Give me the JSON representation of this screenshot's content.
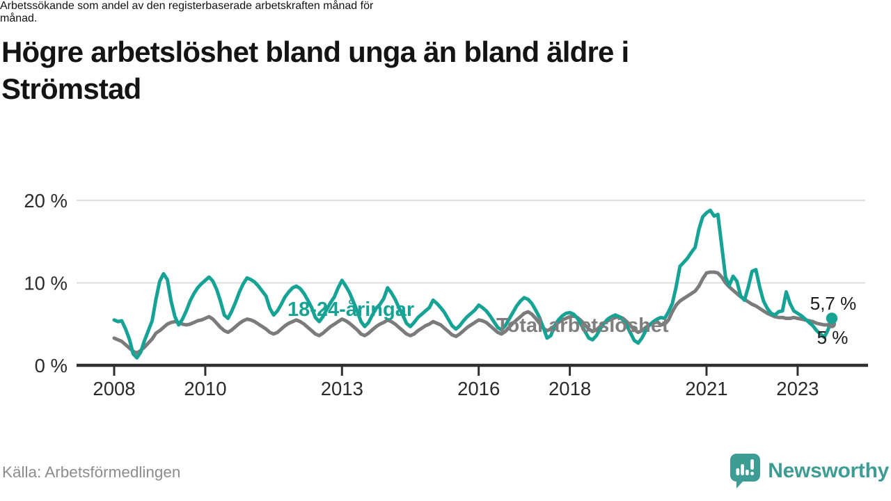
{
  "header": {
    "title_lines": [
      "Högre arbetslöshet bland unga än bland äldre i",
      "Strömstad"
    ],
    "subtitle_lines": [
      "Arbetssökande som andel av den registerbaserade arbetskraften månad för",
      "månad."
    ]
  },
  "footer": {
    "source": "Källa: Arbetsförmedlingen",
    "brand": "Newsworthy",
    "brand_icon": "bar-chart-speech-bubble-icon",
    "brand_color": "#3d9d95"
  },
  "colors": {
    "youth_line": "#16a396",
    "total_line": "#7b7b7b",
    "gridline": "#dcdcdc",
    "axis": "#2f2f2f",
    "annotation_text": "#1a1a1a",
    "tick_label": "#2b2b2b"
  },
  "chart_data": {
    "type": "line",
    "unit": "%",
    "frequency": "monthly",
    "start": "2008-01",
    "end": "2023-10",
    "ylim": [
      0,
      20
    ],
    "grid": "horizontal",
    "legend": "inline-labels",
    "yticks": [
      {
        "value": 0,
        "label": "0 %"
      },
      {
        "value": 10,
        "label": "10 %"
      },
      {
        "value": 20,
        "label": "20 %"
      }
    ],
    "xticks": [
      {
        "label": "2008",
        "month_index": 0
      },
      {
        "label": "2010",
        "month_index": 24
      },
      {
        "label": "2013",
        "month_index": 60
      },
      {
        "label": "2016",
        "month_index": 96
      },
      {
        "label": "2018",
        "month_index": 120
      },
      {
        "label": "2021",
        "month_index": 156
      },
      {
        "label": "2023",
        "month_index": 180
      }
    ],
    "series": [
      {
        "name": "18-24-åringar",
        "color": "#16a396",
        "end_label": "5,7 %",
        "end_value": 5.7,
        "values": [
          5.5,
          5.3,
          5.4,
          4.4,
          3.2,
          1.4,
          0.9,
          1.6,
          3.0,
          4.2,
          5.4,
          8.0,
          10.2,
          11.1,
          10.4,
          7.8,
          5.9,
          4.9,
          5.6,
          6.6,
          7.8,
          8.7,
          9.4,
          9.9,
          10.3,
          10.7,
          10.2,
          9.2,
          7.8,
          6.1,
          5.7,
          6.6,
          7.7,
          8.9,
          9.9,
          10.6,
          10.4,
          10.1,
          9.6,
          9.0,
          8.4,
          6.9,
          6.1,
          6.6,
          7.4,
          8.3,
          8.9,
          9.4,
          9.6,
          9.3,
          8.7,
          7.9,
          7.0,
          5.8,
          5.3,
          5.9,
          6.8,
          7.6,
          8.3,
          9.4,
          10.3,
          9.6,
          8.8,
          7.7,
          6.6,
          5.3,
          4.7,
          5.2,
          6.1,
          6.9,
          7.4,
          8.1,
          9.4,
          8.8,
          8.0,
          7.0,
          6.1,
          5.1,
          4.7,
          5.2,
          5.8,
          6.2,
          6.6,
          7.0,
          7.9,
          7.5,
          7.0,
          6.4,
          5.6,
          4.8,
          4.4,
          4.8,
          5.4,
          5.9,
          6.3,
          6.7,
          7.3,
          7.0,
          6.6,
          6.0,
          5.3,
          4.6,
          4.3,
          4.8,
          5.6,
          6.4,
          7.2,
          7.8,
          8.2,
          8.0,
          7.5,
          6.7,
          5.8,
          4.6,
          3.3,
          3.6,
          4.8,
          5.5,
          6.0,
          6.3,
          6.4,
          6.2,
          5.7,
          4.9,
          4.1,
          3.3,
          3.1,
          3.6,
          4.4,
          5.1,
          5.6,
          5.9,
          6.1,
          5.9,
          5.5,
          4.8,
          3.9,
          3.0,
          2.7,
          3.3,
          4.2,
          4.9,
          5.3,
          5.6,
          5.8,
          5.7,
          6.5,
          7.5,
          9.5,
          12.0,
          12.5,
          13.0,
          13.7,
          14.3,
          16.5,
          18.0,
          18.5,
          18.8,
          18.1,
          18.3,
          14.5,
          10.7,
          9.7,
          10.8,
          10.2,
          8.4,
          7.9,
          9.5,
          11.4,
          11.6,
          9.5,
          7.8,
          6.9,
          6.3,
          6.1,
          6.5,
          6.6,
          8.9,
          7.5,
          6.6,
          6.3,
          6.0,
          5.6,
          5.2,
          4.8,
          4.2,
          3.8,
          3.4,
          4.3,
          5.7
        ]
      },
      {
        "name": "Total arbetslöshet",
        "color": "#7b7b7b",
        "end_label": "5 %",
        "end_value": 5.0,
        "values": [
          3.3,
          3.1,
          2.9,
          2.5,
          2.1,
          1.7,
          1.5,
          1.8,
          2.2,
          2.7,
          3.2,
          3.9,
          4.2,
          4.6,
          5.0,
          5.2,
          5.3,
          5.2,
          5.0,
          4.9,
          5.0,
          5.2,
          5.4,
          5.5,
          5.7,
          5.9,
          5.6,
          5.1,
          4.6,
          4.2,
          4.0,
          4.3,
          4.7,
          5.1,
          5.4,
          5.6,
          5.5,
          5.3,
          5.0,
          4.7,
          4.4,
          4.0,
          3.8,
          4.0,
          4.4,
          4.8,
          5.1,
          5.3,
          5.5,
          5.3,
          5.0,
          4.6,
          4.2,
          3.8,
          3.6,
          3.9,
          4.3,
          4.7,
          5.0,
          5.3,
          5.6,
          5.4,
          5.1,
          4.7,
          4.3,
          3.8,
          3.6,
          3.9,
          4.3,
          4.7,
          5.0,
          5.2,
          5.5,
          5.3,
          5.0,
          4.6,
          4.2,
          3.8,
          3.6,
          3.8,
          4.2,
          4.5,
          4.8,
          5.0,
          5.3,
          5.1,
          4.9,
          4.5,
          4.1,
          3.7,
          3.5,
          3.8,
          4.2,
          4.6,
          4.9,
          5.2,
          5.5,
          5.4,
          5.2,
          4.8,
          4.4,
          4.0,
          3.8,
          4.1,
          4.6,
          5.1,
          5.5,
          5.9,
          6.3,
          6.5,
          6.2,
          5.7,
          5.1,
          4.5,
          4.2,
          4.4,
          4.8,
          5.2,
          5.5,
          5.7,
          5.9,
          6.0,
          5.8,
          5.4,
          4.9,
          4.4,
          4.1,
          4.3,
          4.7,
          5.1,
          5.4,
          5.6,
          5.8,
          5.9,
          5.7,
          5.3,
          4.8,
          4.3,
          4.0,
          4.2,
          4.6,
          4.9,
          5.1,
          5.3,
          4.9,
          5.0,
          5.5,
          6.5,
          7.3,
          7.8,
          8.1,
          8.4,
          8.7,
          9.0,
          9.6,
          10.5,
          11.2,
          11.3,
          11.3,
          11.2,
          10.7,
          10.0,
          9.5,
          9.1,
          8.7,
          8.3,
          8.0,
          7.7,
          7.4,
          7.2,
          6.9,
          6.6,
          6.3,
          6.1,
          5.9,
          5.8,
          5.8,
          5.7,
          5.7,
          5.8,
          5.7,
          5.6,
          5.5,
          5.4,
          5.3,
          5.1,
          5.0,
          4.9,
          4.9,
          5.0
        ]
      }
    ]
  }
}
